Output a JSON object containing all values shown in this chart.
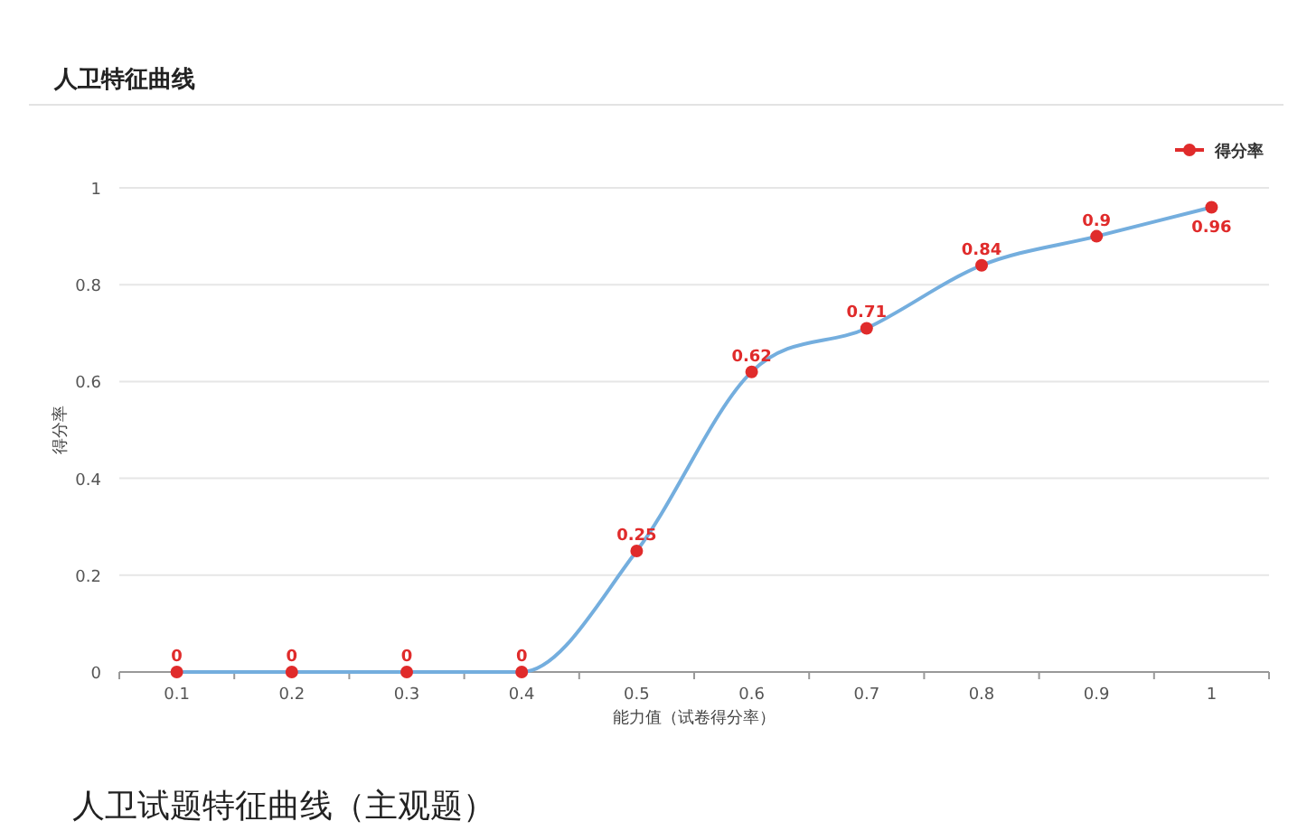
{
  "chart_data": {
    "type": "line",
    "title": "人卫特征曲线",
    "xlabel": "能力值（试卷得分率）",
    "ylabel": "得分率",
    "categories": [
      "0.1",
      "0.2",
      "0.3",
      "0.4",
      "0.5",
      "0.6",
      "0.7",
      "0.8",
      "0.9",
      "1"
    ],
    "series": [
      {
        "name": "得分率",
        "color": "#74aede",
        "colors": [
          "#e02b2b",
          "#e02b2b",
          "#e02b2b",
          "#e02b2b",
          "#e02b2b",
          "#e02b2b",
          "#e02b2b",
          "#e02b2b",
          "#e02b2b",
          "#e02b2b"
        ],
        "values": [
          0,
          0,
          0,
          0,
          0.25,
          0.62,
          0.71,
          0.84,
          0.9,
          0.96
        ]
      }
    ],
    "ylim": [
      0,
      1
    ],
    "yticks": [
      0,
      0.2,
      0.4,
      0.6,
      0.8,
      1
    ],
    "grid": "y",
    "legend": "top right",
    "marker": "circle",
    "data_labels": true,
    "annotations": [
      "人卫试题特征曲线（主观题）"
    ]
  }
}
